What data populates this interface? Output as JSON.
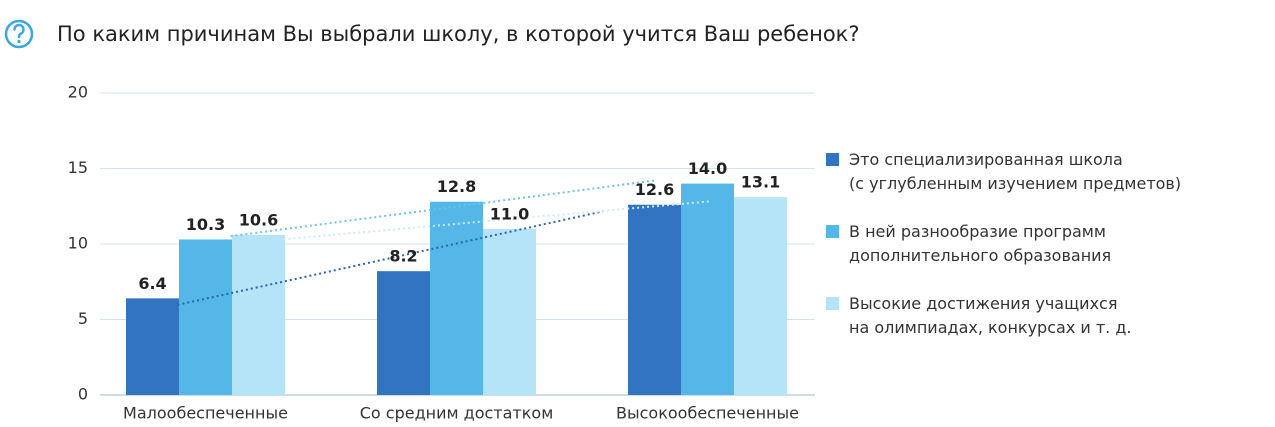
{
  "chart_data": {
    "type": "bar",
    "title": "По каким причинам Вы выбрали школу, в которой учится Ваш ребенок?",
    "categories": [
      "Малообеспеченные",
      "Со средним достатком",
      "Высокообеспеченные"
    ],
    "series": [
      {
        "name": "Это специализированная школа\n(с углубленным изучением предметов)",
        "color": "#3274c0",
        "trend_color": "#2a65ad",
        "values": [
          6.4,
          8.2,
          12.6
        ],
        "value_labels": [
          "6.4",
          "8.2",
          "12.6"
        ]
      },
      {
        "name": "В ней разнообразие программ\nдополнительного образования",
        "color": "#55b7e8",
        "trend_color": "#6cc3ee",
        "values": [
          10.3,
          12.8,
          14.0
        ],
        "value_labels": [
          "10.3",
          "12.8",
          "14.0"
        ]
      },
      {
        "name": "Высокие достижения учащихся\nна олимпиадах, конкурсах и т. д.",
        "color": "#b5e3f8",
        "trend_color": "#cdebf9",
        "values": [
          10.6,
          11.0,
          13.1
        ],
        "value_labels": [
          "10.6",
          "11.0",
          "13.1"
        ]
      }
    ],
    "ylim": [
      0,
      20
    ],
    "yticks": [
      0,
      5,
      10,
      15,
      20
    ],
    "grid": true,
    "trendline": true,
    "legend": "right"
  }
}
